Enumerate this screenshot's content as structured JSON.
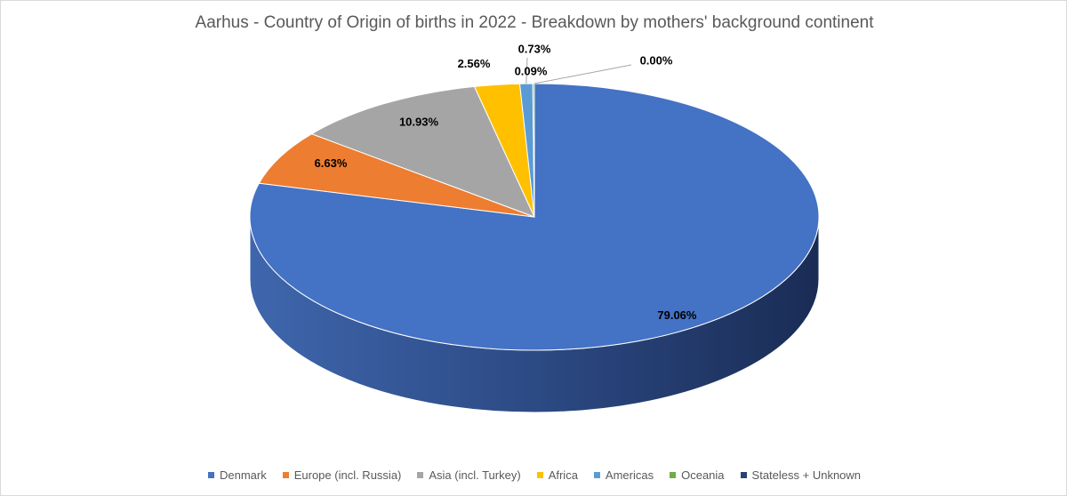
{
  "chart_data": {
    "type": "pie",
    "style": "3d-pie",
    "title": "Aarhus - Country of Origin of births in 2022 - Breakdown by mothers' background continent",
    "legend_position": "bottom",
    "slices": [
      {
        "name": "Denmark",
        "value": 79.06,
        "label": "79.06%",
        "color": "#4472C4"
      },
      {
        "name": "Europe (incl. Russia)",
        "value": 6.63,
        "label": "6.63%",
        "color": "#ED7D31"
      },
      {
        "name": "Asia (incl. Turkey)",
        "value": 10.93,
        "label": "10.93%",
        "color": "#A5A5A5"
      },
      {
        "name": "Africa",
        "value": 2.56,
        "label": "2.56%",
        "color": "#FFC000"
      },
      {
        "name": "Americas",
        "value": 0.73,
        "label": "0.73%",
        "color": "#5B9BD5"
      },
      {
        "name": "Oceania",
        "value": 0.09,
        "label": "0.09%",
        "color": "#70AD47"
      },
      {
        "name": "Stateless + Unknown",
        "value": 0.0,
        "label": "0.00%",
        "color": "#264478"
      }
    ]
  }
}
